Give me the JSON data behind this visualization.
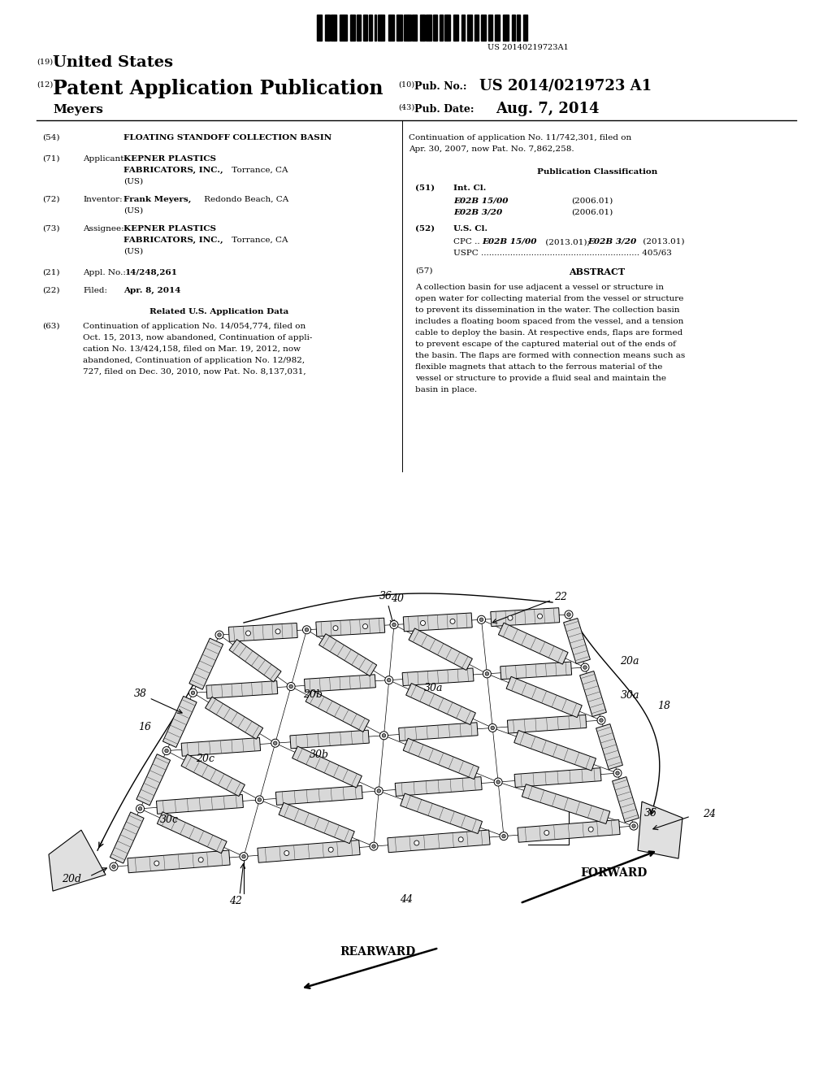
{
  "background_color": "#ffffff",
  "page_width": 10.24,
  "page_height": 13.2,
  "barcode_text": "US 20140219723A1",
  "title_19": "(19)",
  "title_19_text": "United States",
  "title_12": "(12)",
  "title_12_text": "Patent Application Publication",
  "title_10": "(10)",
  "title_10_text": "Pub. No.:",
  "pub_no": "US 2014/0219723 A1",
  "title_43": "(43)",
  "title_43_text": "Pub. Date:",
  "pub_date": "Aug. 7, 2014",
  "inventor_name": "Meyers",
  "field_54_label": "(54)",
  "field_54_text": "FLOATING STANDOFF COLLECTION BASIN",
  "field_71_label": "(71)",
  "field_71_text": "Applicant:",
  "field_72_label": "(72)",
  "field_72_text": "Inventor:",
  "field_73_label": "(73)",
  "field_73_text": "Assignee:",
  "field_21_label": "(21)",
  "field_22_label": "(22)",
  "field_22_text": "Filed:",
  "field_22_date": "Apr. 8, 2014",
  "related_title": "Related U.S. Application Data",
  "field_63_label": "(63)",
  "field_63_lines": [
    "Continuation of application No. 14/054,774, filed on",
    "Oct. 15, 2013, now abandoned, Continuation of appli-",
    "cation No. 13/424,158, filed on Mar. 19, 2012, now",
    "abandoned, Continuation of application No. 12/982,",
    "727, filed on Dec. 30, 2010, now Pat. No. 8,137,031,"
  ],
  "cont_lines": [
    "Continuation of application No. 11/742,301, filed on",
    "Apr. 30, 2007, now Pat. No. 7,862,258."
  ],
  "pub_class_title": "Publication Classification",
  "field_51_label": "(51)",
  "field_51_text": "Int. Cl.",
  "field_51_e02b1500": "E02B 15/00",
  "field_51_e02b1500_date": "(2006.01)",
  "field_51_e02b320": "E02B 3/20",
  "field_51_e02b320_date": "(2006.01)",
  "field_52_label": "(52)",
  "field_52_text": "U.S. Cl.",
  "field_52_uspc": "USPC ............................................................ 405/63",
  "field_57_label": "(57)",
  "field_57_title": "ABSTRACT",
  "abstract_lines": [
    "A collection basin for use adjacent a vessel or structure in",
    "open water for collecting material from the vessel or structure",
    "to prevent its dissemination in the water. The collection basin",
    "includes a floating boom spaced from the vessel, and a tension",
    "cable to deploy the basin. At respective ends, flaps are formed",
    "to prevent escape of the captured material out of the ends of",
    "the basin. The flaps are formed with connection means such as",
    "flexible magnets that attach to the ferrous material of the",
    "vessel or structure to provide a fluid seal and maintain the",
    "basin in place."
  ]
}
